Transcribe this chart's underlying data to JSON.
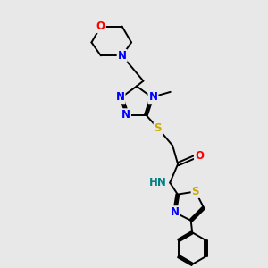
{
  "bg_color": "#e8e8e8",
  "bond_color": "#000000",
  "atom_colors": {
    "N": "#0000ff",
    "O": "#ff0000",
    "S": "#ccaa00",
    "C": "#000000",
    "H": "#008080"
  },
  "lw": 1.4,
  "fs": 8.5,
  "fs_small": 7.0
}
